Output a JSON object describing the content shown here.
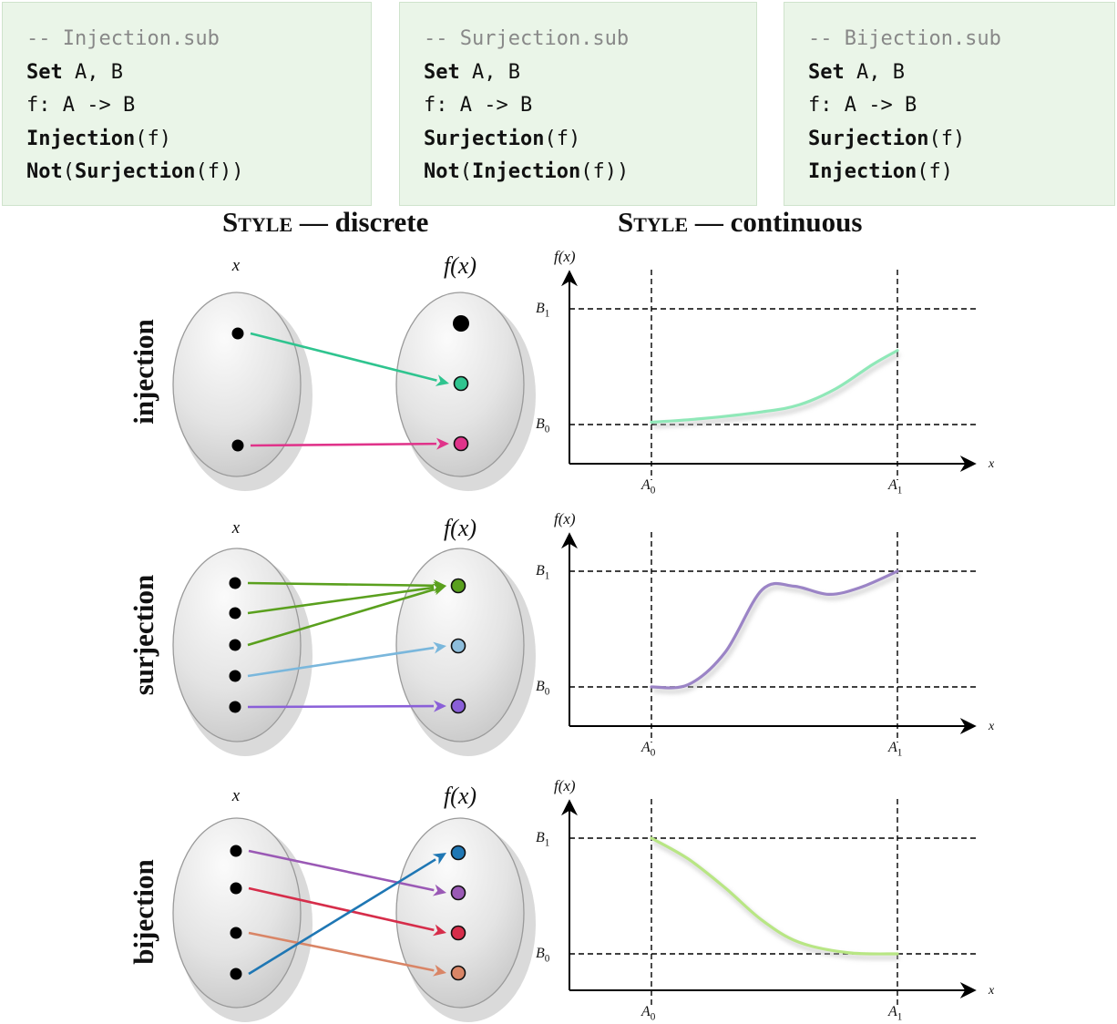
{
  "code_boxes": [
    {
      "filename": "-- Injection.sub",
      "lines": [
        {
          "kw": "Set",
          "rest": " A, B"
        },
        {
          "kw": "",
          "rest": "f: A -> B"
        },
        {
          "kw": "Injection",
          "rest": "(f)"
        },
        {
          "kw": "Not",
          "mid": "(",
          "kw2": "Surjection",
          "rest": "(f))"
        }
      ]
    },
    {
      "filename": "-- Surjection.sub",
      "lines": [
        {
          "kw": "Set",
          "rest": " A, B"
        },
        {
          "kw": "",
          "rest": "f: A -> B"
        },
        {
          "kw": "Surjection",
          "rest": "(f)"
        },
        {
          "kw": "Not",
          "mid": "(",
          "kw2": "Injection",
          "rest": "(f))"
        }
      ]
    },
    {
      "filename": "-- Bijection.sub",
      "lines": [
        {
          "kw": "Set",
          "rest": " A, B"
        },
        {
          "kw": "",
          "rest": "f: A -> B"
        },
        {
          "kw": "Surjection",
          "rest": "(f)"
        },
        {
          "kw": "Injection",
          "rest": "(f)"
        }
      ]
    }
  ],
  "titles": {
    "discrete": {
      "style": "Style",
      "rest": " — discrete"
    },
    "continuous": {
      "style": "Style",
      "rest": " — continuous"
    }
  },
  "labels": {
    "domain": "x",
    "codomain": "f(x)",
    "plot_y": "f(x)",
    "plot_x": "x",
    "a0": "A",
    "a1": "A",
    "b0": "B",
    "b1": "B",
    "sub0": "0",
    "sub1": "1"
  },
  "rows": [
    {
      "label": "injection",
      "domain_points": 2,
      "codomain_points": [
        {
          "fill": "#000000"
        },
        {
          "fill": "#2fc48f"
        },
        {
          "fill": "#e0338a"
        }
      ],
      "arrows": [
        {
          "from": 0,
          "to": 1,
          "color": "#2fc48f"
        },
        {
          "from": 1,
          "to": 2,
          "color": "#e0338a"
        }
      ],
      "curve_color": "#8fe8b8",
      "curve": [
        [
          0,
          0.02
        ],
        [
          0.2,
          0.05
        ],
        [
          0.45,
          0.11
        ],
        [
          0.6,
          0.17
        ],
        [
          0.75,
          0.31
        ],
        [
          0.9,
          0.52
        ],
        [
          1.0,
          0.64
        ]
      ]
    },
    {
      "label": "surjection",
      "domain_points": 5,
      "codomain_points": [
        {
          "fill": "#5aa01e"
        },
        {
          "fill": "#8dbddb"
        },
        {
          "fill": "#8a5fd8"
        }
      ],
      "arrows": [
        {
          "from": 0,
          "to": 0,
          "color": "#5aa01e"
        },
        {
          "from": 1,
          "to": 0,
          "color": "#5aa01e"
        },
        {
          "from": 2,
          "to": 0,
          "color": "#5aa01e"
        },
        {
          "from": 3,
          "to": 1,
          "color": "#7ab7dc"
        },
        {
          "from": 4,
          "to": 2,
          "color": "#8a5fd8"
        }
      ],
      "curve_color": "#9b84c6",
      "curve": [
        [
          0,
          0.0
        ],
        [
          0.15,
          0.02
        ],
        [
          0.3,
          0.3
        ],
        [
          0.45,
          0.84
        ],
        [
          0.58,
          0.87
        ],
        [
          0.72,
          0.8
        ],
        [
          0.85,
          0.86
        ],
        [
          1.0,
          1.0
        ]
      ]
    },
    {
      "label": "bijection",
      "domain_points": 4,
      "codomain_points": [
        {
          "fill": "#1f77b4"
        },
        {
          "fill": "#9a59b5"
        },
        {
          "fill": "#d62d4a"
        },
        {
          "fill": "#d98566"
        }
      ],
      "arrows": [
        {
          "from": 0,
          "to": 1,
          "color": "#9a59b5"
        },
        {
          "from": 1,
          "to": 2,
          "color": "#d62d4a"
        },
        {
          "from": 2,
          "to": 3,
          "color": "#d98566"
        },
        {
          "from": 3,
          "to": 0,
          "color": "#1f77b4"
        }
      ],
      "curve_color": "#b8e684",
      "curve": [
        [
          0,
          1.0
        ],
        [
          0.15,
          0.82
        ],
        [
          0.3,
          0.57
        ],
        [
          0.45,
          0.29
        ],
        [
          0.6,
          0.1
        ],
        [
          0.8,
          0.01
        ],
        [
          1.0,
          0.0
        ]
      ]
    }
  ]
}
